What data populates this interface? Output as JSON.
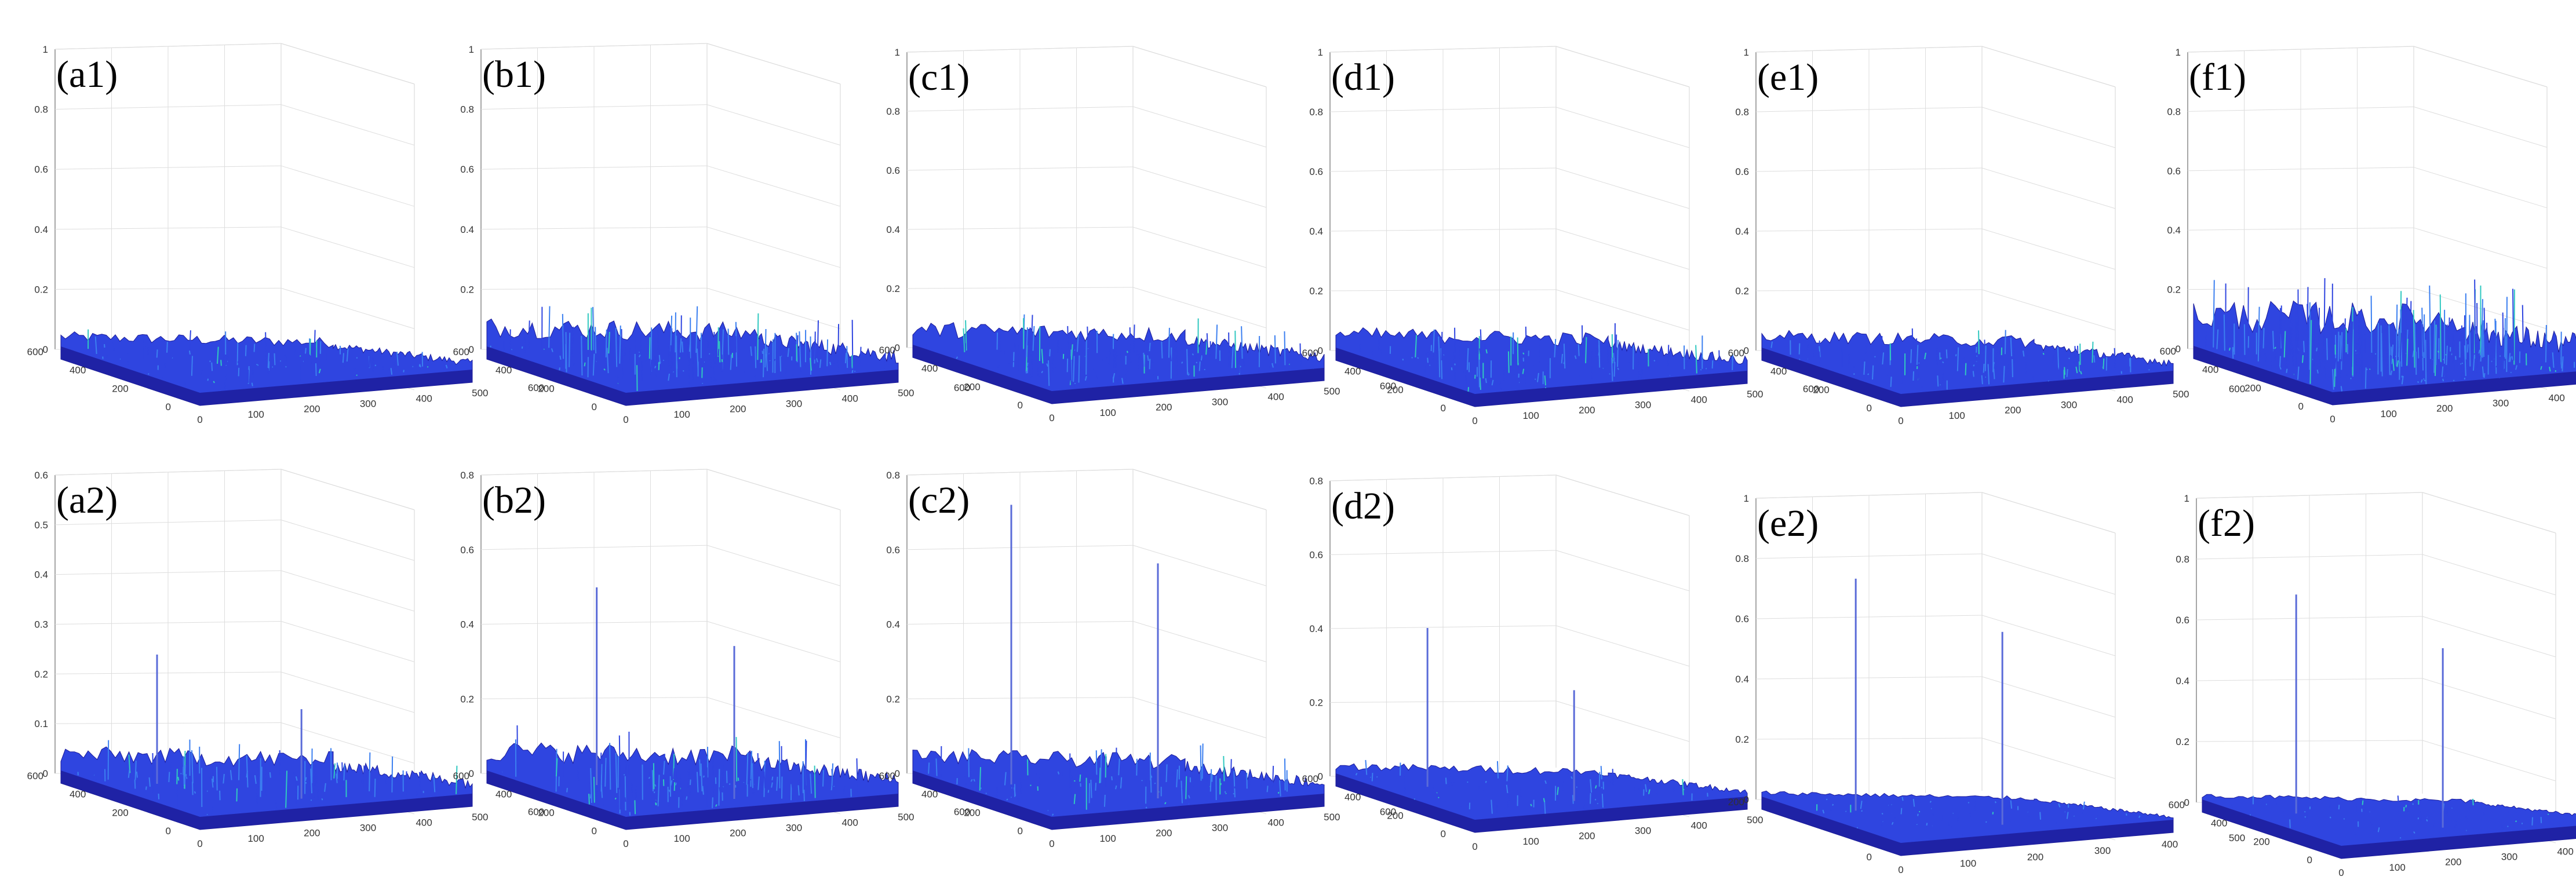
{
  "chart_data": [
    {
      "type": "surface3d",
      "label": "(a1)",
      "zticks": [
        "0",
        "0.2",
        "0.4",
        "0.6",
        "0.8",
        "1"
      ],
      "zlim": [
        0,
        1
      ],
      "xticks": [
        "0",
        "100",
        "200",
        "300",
        "400",
        "500",
        "600"
      ],
      "yticks": [
        "0",
        "200",
        "400",
        "600"
      ],
      "noise_level": 0.05,
      "peaks": []
    },
    {
      "type": "surface3d",
      "label": "(b1)",
      "zticks": [
        "0",
        "0.2",
        "0.4",
        "0.6",
        "0.8",
        "1"
      ],
      "zlim": [
        0,
        1
      ],
      "xticks": [
        "0",
        "100",
        "200",
        "300",
        "400",
        "500",
        "600"
      ],
      "yticks": [
        "0",
        "200",
        "400",
        "600"
      ],
      "noise_level": 0.1,
      "peaks": []
    },
    {
      "type": "surface3d",
      "label": "(c1)",
      "zticks": [
        "0",
        "0.2",
        "0.4",
        "0.6",
        "0.8",
        "1"
      ],
      "zlim": [
        0,
        1
      ],
      "xticks": [
        "0",
        "100",
        "200",
        "300",
        "400",
        "500",
        "600"
      ],
      "yticks": [
        "0",
        "200",
        "400",
        "600"
      ],
      "noise_level": 0.08,
      "peaks": []
    },
    {
      "type": "surface3d",
      "label": "(d1)",
      "zticks": [
        "0",
        "0.2",
        "0.4",
        "0.6",
        "0.8",
        "1"
      ],
      "zlim": [
        0,
        1
      ],
      "xticks": [
        "0",
        "100",
        "200",
        "300",
        "400",
        "500",
        "600"
      ],
      "yticks": [
        "0",
        "200",
        "400",
        "600"
      ],
      "noise_level": 0.07,
      "peaks": []
    },
    {
      "type": "surface3d",
      "label": "(e1)",
      "zticks": [
        "0",
        "0.2",
        "0.4",
        "0.6",
        "0.8",
        "1"
      ],
      "zlim": [
        0,
        1
      ],
      "xticks": [
        "0",
        "100",
        "200",
        "300",
        "400",
        "500",
        "600"
      ],
      "yticks": [
        "0",
        "200",
        "400",
        "600"
      ],
      "noise_level": 0.06,
      "peaks": []
    },
    {
      "type": "surface3d",
      "label": "(f1)",
      "zticks": [
        "0",
        "0.2",
        "0.4",
        "0.6",
        "0.8",
        "1"
      ],
      "zlim": [
        0,
        1
      ],
      "xticks": [
        "0",
        "100",
        "200",
        "300",
        "400",
        "500",
        "600"
      ],
      "yticks": [
        "0",
        "200",
        "400",
        "600"
      ],
      "noise_level": 0.16,
      "peaks": []
    },
    {
      "type": "surface3d",
      "label": "(a2)",
      "zticks": [
        "0",
        "0.1",
        "0.2",
        "0.3",
        "0.4",
        "0.5",
        "0.6"
      ],
      "zlim": [
        0,
        0.6
      ],
      "xticks": [
        "0",
        "100",
        "200",
        "300",
        "400",
        "500",
        "600"
      ],
      "yticks": [
        "0",
        "200",
        "400",
        "600"
      ],
      "noise_level": 0.05,
      "peaks": [
        {
          "x": 120,
          "y": 420,
          "z": 0.26
        },
        {
          "x": 290,
          "y": 130,
          "z": 0.18
        }
      ]
    },
    {
      "type": "surface3d",
      "label": "(b2)",
      "zticks": [
        "0",
        "0.2",
        "0.4",
        "0.6",
        "0.8"
      ],
      "zlim": [
        0,
        0.8
      ],
      "xticks": [
        "0",
        "100",
        "200",
        "300",
        "400",
        "500",
        "600"
      ],
      "yticks": [
        "0",
        "200",
        "400",
        "600"
      ],
      "noise_level": 0.08,
      "peaks": [
        {
          "x": 140,
          "y": 400,
          "z": 0.53
        },
        {
          "x": 300,
          "y": 120,
          "z": 0.41
        }
      ]
    },
    {
      "type": "surface3d",
      "label": "(c2)",
      "zticks": [
        "0",
        "0.2",
        "0.4",
        "0.6",
        "0.8"
      ],
      "zlim": [
        0,
        0.8
      ],
      "xticks": [
        "0",
        "100",
        "200",
        "300",
        "400",
        "500",
        "600"
      ],
      "yticks": [
        "0",
        "200",
        "400",
        "600"
      ],
      "noise_level": 0.06,
      "peaks": [
        {
          "x": 120,
          "y": 410,
          "z": 0.75
        },
        {
          "x": 300,
          "y": 130,
          "z": 0.63
        }
      ]
    },
    {
      "type": "surface3d",
      "label": "(d2)",
      "zticks": [
        "0",
        "0.2",
        "0.4",
        "0.6",
        "0.8"
      ],
      "zlim": [
        0,
        0.8
      ],
      "xticks": [
        "0",
        "100",
        "200",
        "300",
        "400",
        "500",
        "600"
      ],
      "yticks": [
        "0",
        "200",
        "400",
        "600"
      ],
      "noise_level": 0.03,
      "peaks": [
        {
          "x": 110,
          "y": 420,
          "z": 0.43
        },
        {
          "x": 290,
          "y": 140,
          "z": 0.3
        }
      ]
    },
    {
      "type": "surface3d",
      "label": "(e2)",
      "zticks": [
        "0",
        "0.2",
        "0.4",
        "0.6",
        "0.8",
        "1"
      ],
      "zlim": [
        0,
        1
      ],
      "xticks": [
        "0",
        "100",
        "200",
        "300",
        "400",
        "500"
      ],
      "yticks": [
        "0",
        "200"
      ],
      "noise_level": 0.02,
      "peaks": [
        {
          "x": 110,
          "y": 410,
          "z": 0.77
        },
        {
          "x": 290,
          "y": 130,
          "z": 0.64
        }
      ]
    },
    {
      "type": "surface3d",
      "label": "(f2)",
      "zticks": [
        "0",
        "0.2",
        "0.4",
        "0.6",
        "0.8",
        "1"
      ],
      "zlim": [
        0,
        1
      ],
      "xticks": [
        "0",
        "100",
        "200",
        "300",
        "400",
        "500",
        "600"
      ],
      "yticks": [
        "0",
        "200",
        "400",
        "600"
      ],
      "noise_level": 0.02,
      "peaks": [
        {
          "x": 110,
          "y": 410,
          "z": 0.72
        },
        {
          "x": 290,
          "y": 130,
          "z": 0.59
        }
      ]
    }
  ],
  "colors": {
    "surface_dark": "#1c1c9a",
    "surface_mid": "#2f45e0",
    "surface_light": "#3b7ff0",
    "highlight": "#30c8c0",
    "grid": "#dddddd",
    "axis": "#888888"
  }
}
